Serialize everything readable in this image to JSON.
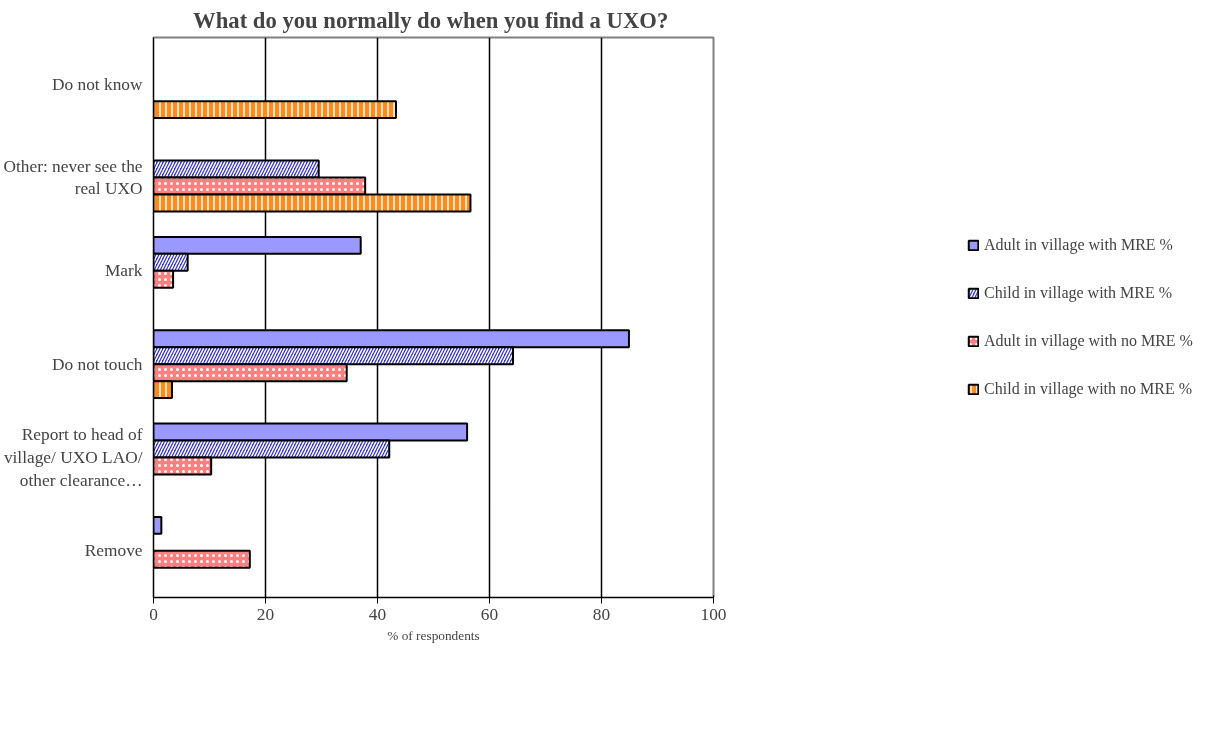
{
  "chart_data": {
    "type": "bar",
    "orientation": "horizontal",
    "title": "What do you normally do when you find  a UXO?",
    "xlabel": "% of respondents",
    "categories": [
      "Do not know",
      "Other: never see the real UXO",
      "Mark",
      "Do not touch",
      "Report to head of village/ UXO LAO/ other clearance…",
      "Remove"
    ],
    "series": [
      {
        "name": "Adult in village with MRE %",
        "color": "#9999ff",
        "values": [
          null,
          null,
          37.0,
          84.9,
          56.0,
          1.4
        ]
      },
      {
        "name": "Child in village with MRE %",
        "color": "#3333cc",
        "values": [
          null,
          29.5,
          6.1,
          64.2,
          42.1,
          null
        ]
      },
      {
        "name": "Adult in village with no MRE %",
        "color": "#ff8080",
        "values": [
          null,
          37.8,
          3.5,
          34.5,
          10.3,
          17.2
        ]
      },
      {
        "name": "Child in village with no MRE %",
        "color": "#ff8c1a",
        "values": [
          43.3,
          56.6,
          null,
          3.3,
          null,
          null
        ]
      }
    ],
    "xlim": [
      0,
      100
    ],
    "xticks": [
      0,
      20,
      40,
      60,
      80,
      100
    ],
    "grid": "x",
    "legend": "right"
  }
}
